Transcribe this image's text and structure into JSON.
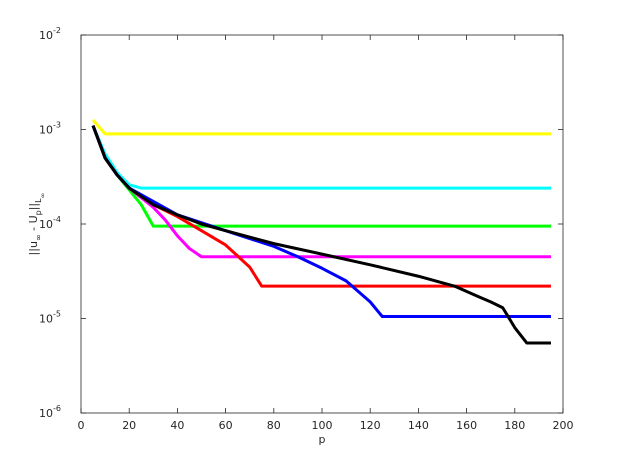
{
  "chart_data": {
    "type": "line",
    "ylog": true,
    "xlim": [
      0,
      200
    ],
    "ylim": [
      1e-06,
      0.01
    ],
    "xticks": [
      0,
      20,
      40,
      60,
      80,
      100,
      120,
      140,
      160,
      180,
      200
    ],
    "yticks": [
      {
        "value": 1e-06,
        "label": "10",
        "exponent": "-6"
      },
      {
        "value": 1e-05,
        "label": "10",
        "exponent": "-5"
      },
      {
        "value": 0.0001,
        "label": "10",
        "exponent": "-4"
      },
      {
        "value": 0.001,
        "label": "10",
        "exponent": "-3"
      },
      {
        "value": 0.01,
        "label": "10",
        "exponent": "-2"
      }
    ],
    "xlabel": "p",
    "ylabel": [
      {
        "text": "||u",
        "sub": 0
      },
      {
        "text": "∞",
        "sub": 1
      },
      {
        "text": " - U",
        "sub": 0
      },
      {
        "text": "p",
        "sub": 1
      },
      {
        "text": "||",
        "sub": 0
      },
      {
        "text": "L",
        "sub": 1
      },
      {
        "text": "∞",
        "sub": 2
      }
    ],
    "series": [
      {
        "color": "#ffff00",
        "x": [
          5,
          10,
          195
        ],
        "values": [
          0.00126,
          0.0009,
          0.0009
        ]
      },
      {
        "color": "#00ffff",
        "x": [
          5,
          10,
          15,
          20,
          25,
          195
        ],
        "values": [
          0.0011,
          0.00055,
          0.00035,
          0.00026,
          0.00024,
          0.00024
        ]
      },
      {
        "color": "#00ff00",
        "x": [
          5,
          10,
          15,
          20,
          25,
          30,
          195
        ],
        "values": [
          0.0011,
          0.0005,
          0.00033,
          0.00023,
          0.00016,
          9.5e-05,
          9.5e-05
        ]
      },
      {
        "color": "#ff00ff",
        "x": [
          5,
          10,
          15,
          20,
          30,
          35,
          40,
          45,
          50,
          195
        ],
        "values": [
          0.0011,
          0.0005,
          0.00033,
          0.00024,
          0.00015,
          0.00011,
          7.5e-05,
          5.5e-05,
          4.5e-05,
          4.5e-05
        ]
      },
      {
        "color": "#ff0000",
        "x": [
          5,
          10,
          15,
          20,
          30,
          40,
          50,
          60,
          70,
          75,
          195
        ],
        "values": [
          0.0011,
          0.0005,
          0.00033,
          0.00024,
          0.00016,
          0.00012,
          8.5e-05,
          6e-05,
          3.5e-05,
          2.2e-05,
          2.2e-05
        ]
      },
      {
        "color": "#0000ff",
        "x": [
          5,
          10,
          15,
          20,
          40,
          60,
          80,
          90,
          100,
          110,
          120,
          125,
          195
        ],
        "values": [
          0.0011,
          0.0005,
          0.00033,
          0.00024,
          0.000125,
          8.5e-05,
          5.8e-05,
          4.5e-05,
          3.4e-05,
          2.5e-05,
          1.5e-05,
          1.05e-05,
          1.05e-05
        ]
      },
      {
        "color": "#000000",
        "x": [
          5,
          10,
          15,
          20,
          30,
          40,
          50,
          60,
          80,
          100,
          120,
          140,
          155,
          165,
          170,
          175,
          180,
          185,
          195
        ],
        "values": [
          0.0011,
          0.0005,
          0.00033,
          0.00024,
          0.00016,
          0.000125,
          0.0001,
          8.5e-05,
          6.2e-05,
          4.8e-05,
          3.7e-05,
          2.8e-05,
          2.2e-05,
          1.7e-05,
          1.5e-05,
          1.3e-05,
          8e-06,
          5.5e-06,
          5.5e-06
        ]
      }
    ]
  }
}
